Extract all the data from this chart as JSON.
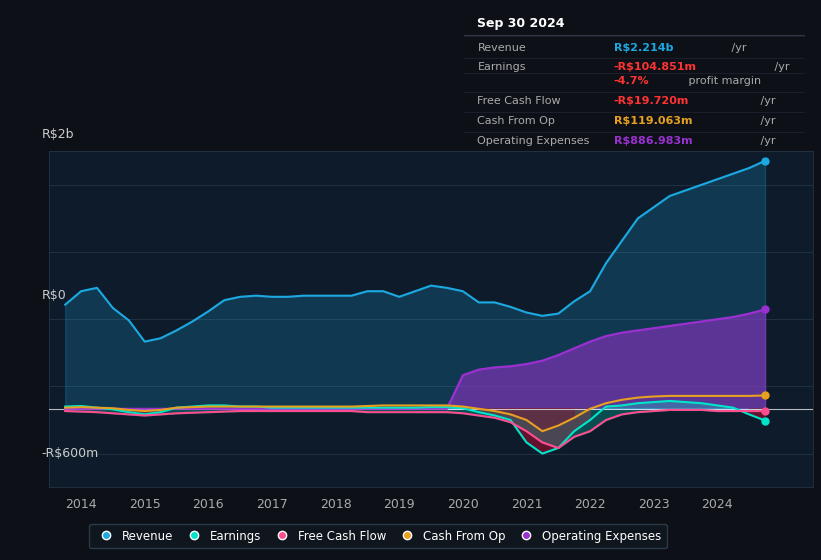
{
  "background_color": "#0d1117",
  "plot_bg_color": "#0d1b2a",
  "ylabel_top": "R$2b",
  "ylabel_zero": "R$0",
  "ylabel_bottom": "-R$600m",
  "ylim": [
    -700,
    2300
  ],
  "xlim": [
    2013.5,
    2025.5
  ],
  "xticks": [
    2014,
    2015,
    2016,
    2017,
    2018,
    2019,
    2020,
    2021,
    2022,
    2023,
    2024
  ],
  "colors": {
    "revenue": "#1ca8e0",
    "earnings": "#00e5c8",
    "free_cash_flow": "#ff4d8f",
    "cash_from_op": "#e8a020",
    "operating_expenses": "#9b30d0"
  },
  "info_box": {
    "date": "Sep 30 2024",
    "revenue_label": "Revenue",
    "revenue_value": "R$2.214b",
    "revenue_suffix": " /yr",
    "earnings_label": "Earnings",
    "earnings_value": "-R$104.851m",
    "earnings_suffix": " /yr",
    "margin_value": "-4.7%",
    "margin_suffix": " profit margin",
    "fcf_label": "Free Cash Flow",
    "fcf_value": "-R$19.720m",
    "fcf_suffix": " /yr",
    "cfo_label": "Cash From Op",
    "cfo_value": "R$119.063m",
    "cfo_suffix": " /yr",
    "opex_label": "Operating Expenses",
    "opex_value": "R$886.983m",
    "opex_suffix": " /yr"
  },
  "legend": [
    {
      "label": "Revenue",
      "color": "#1ca8e0"
    },
    {
      "label": "Earnings",
      "color": "#00e5c8"
    },
    {
      "label": "Free Cash Flow",
      "color": "#ff4d8f"
    },
    {
      "label": "Cash From Op",
      "color": "#e8a020"
    },
    {
      "label": "Operating Expenses",
      "color": "#9b30d0"
    }
  ],
  "revenue": {
    "x": [
      2013.75,
      2014.0,
      2014.25,
      2014.5,
      2014.75,
      2015.0,
      2015.25,
      2015.5,
      2015.75,
      2016.0,
      2016.25,
      2016.5,
      2016.75,
      2017.0,
      2017.25,
      2017.5,
      2017.75,
      2018.0,
      2018.25,
      2018.5,
      2018.75,
      2019.0,
      2019.25,
      2019.5,
      2019.75,
      2020.0,
      2020.25,
      2020.5,
      2020.75,
      2021.0,
      2021.25,
      2021.5,
      2021.75,
      2022.0,
      2022.25,
      2022.5,
      2022.75,
      2023.0,
      2023.25,
      2023.5,
      2023.75,
      2024.0,
      2024.25,
      2024.5,
      2024.75
    ],
    "y": [
      930,
      1050,
      1080,
      900,
      790,
      600,
      630,
      700,
      780,
      870,
      970,
      1000,
      1010,
      1000,
      1000,
      1010,
      1010,
      1010,
      1010,
      1050,
      1050,
      1000,
      1050,
      1100,
      1080,
      1050,
      950,
      950,
      910,
      860,
      830,
      850,
      960,
      1050,
      1300,
      1500,
      1700,
      1800,
      1900,
      1950,
      2000,
      2050,
      2100,
      2150,
      2214
    ]
  },
  "earnings": {
    "x": [
      2013.75,
      2014.0,
      2014.25,
      2014.5,
      2014.75,
      2015.0,
      2015.25,
      2015.5,
      2015.75,
      2016.0,
      2016.25,
      2016.5,
      2016.75,
      2017.0,
      2017.25,
      2017.5,
      2017.75,
      2018.0,
      2018.25,
      2018.5,
      2018.75,
      2019.0,
      2019.25,
      2019.5,
      2019.75,
      2020.0,
      2020.25,
      2020.5,
      2020.75,
      2021.0,
      2021.25,
      2021.5,
      2021.75,
      2022.0,
      2022.25,
      2022.5,
      2022.75,
      2023.0,
      2023.25,
      2023.5,
      2023.75,
      2024.0,
      2024.25,
      2024.5,
      2024.75
    ],
    "y": [
      20,
      25,
      10,
      -5,
      -30,
      -50,
      -30,
      10,
      20,
      30,
      30,
      20,
      20,
      10,
      10,
      10,
      10,
      10,
      10,
      10,
      10,
      10,
      10,
      15,
      15,
      5,
      -30,
      -60,
      -100,
      -300,
      -400,
      -350,
      -200,
      -100,
      20,
      30,
      50,
      60,
      70,
      60,
      50,
      30,
      10,
      -50,
      -105
    ]
  },
  "free_cash_flow": {
    "x": [
      2013.75,
      2014.0,
      2014.25,
      2014.5,
      2014.75,
      2015.0,
      2015.25,
      2015.5,
      2015.75,
      2016.0,
      2016.25,
      2016.5,
      2016.75,
      2017.0,
      2017.25,
      2017.5,
      2017.75,
      2018.0,
      2018.25,
      2018.5,
      2018.75,
      2019.0,
      2019.25,
      2019.5,
      2019.75,
      2020.0,
      2020.25,
      2020.5,
      2020.75,
      2021.0,
      2021.25,
      2021.5,
      2021.75,
      2022.0,
      2022.25,
      2022.5,
      2022.75,
      2023.0,
      2023.25,
      2023.5,
      2023.75,
      2024.0,
      2024.25,
      2024.5,
      2024.75
    ],
    "y": [
      -20,
      -25,
      -30,
      -40,
      -50,
      -60,
      -50,
      -40,
      -35,
      -30,
      -25,
      -20,
      -20,
      -20,
      -20,
      -20,
      -20,
      -20,
      -20,
      -30,
      -30,
      -30,
      -30,
      -30,
      -30,
      -40,
      -60,
      -80,
      -120,
      -200,
      -300,
      -350,
      -250,
      -200,
      -100,
      -50,
      -30,
      -20,
      -10,
      -10,
      -10,
      -20,
      -20,
      -20,
      -20
    ]
  },
  "cash_from_op": {
    "x": [
      2013.75,
      2014.0,
      2014.25,
      2014.5,
      2014.75,
      2015.0,
      2015.25,
      2015.5,
      2015.75,
      2016.0,
      2016.25,
      2016.5,
      2016.75,
      2017.0,
      2017.25,
      2017.5,
      2017.75,
      2018.0,
      2018.25,
      2018.5,
      2018.75,
      2019.0,
      2019.25,
      2019.5,
      2019.75,
      2020.0,
      2020.25,
      2020.5,
      2020.75,
      2021.0,
      2021.25,
      2021.5,
      2021.75,
      2022.0,
      2022.25,
      2022.5,
      2022.75,
      2023.0,
      2023.25,
      2023.5,
      2023.75,
      2024.0,
      2024.25,
      2024.5,
      2024.75
    ],
    "y": [
      10,
      15,
      10,
      5,
      -10,
      -20,
      -10,
      10,
      15,
      20,
      20,
      20,
      20,
      20,
      20,
      20,
      20,
      20,
      20,
      25,
      30,
      30,
      30,
      30,
      30,
      20,
      0,
      -20,
      -50,
      -100,
      -200,
      -150,
      -80,
      0,
      50,
      80,
      100,
      110,
      115,
      115,
      115,
      115,
      115,
      115,
      119
    ]
  },
  "operating_expenses": {
    "x": [
      2013.75,
      2014.0,
      2014.25,
      2014.5,
      2014.75,
      2015.0,
      2015.25,
      2015.5,
      2015.75,
      2016.0,
      2016.25,
      2016.5,
      2016.75,
      2017.0,
      2017.25,
      2017.5,
      2017.75,
      2018.0,
      2018.25,
      2018.5,
      2018.75,
      2019.0,
      2019.25,
      2019.5,
      2019.75,
      2020.0,
      2020.25,
      2020.5,
      2020.75,
      2021.0,
      2021.25,
      2021.5,
      2021.75,
      2022.0,
      2022.25,
      2022.5,
      2022.75,
      2023.0,
      2023.25,
      2023.5,
      2023.75,
      2024.0,
      2024.25,
      2024.5,
      2024.75
    ],
    "y": [
      0,
      0,
      0,
      0,
      0,
      0,
      0,
      0,
      0,
      0,
      0,
      0,
      0,
      0,
      0,
      0,
      0,
      0,
      0,
      0,
      0,
      0,
      0,
      0,
      0,
      300,
      350,
      370,
      380,
      400,
      430,
      480,
      540,
      600,
      650,
      680,
      700,
      720,
      740,
      760,
      780,
      800,
      820,
      850,
      887
    ]
  }
}
